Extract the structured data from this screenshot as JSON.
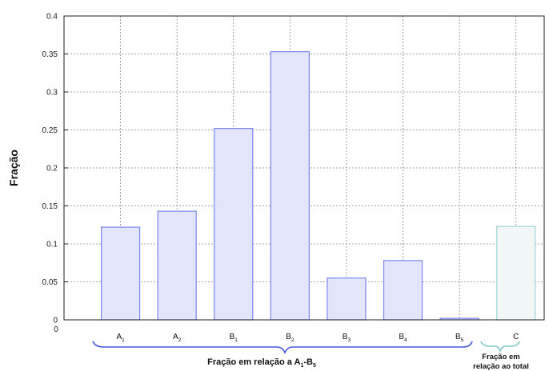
{
  "chart_data": {
    "type": "bar",
    "ylabel": "Fração",
    "ylim": [
      0,
      0.4
    ],
    "yticks": [
      "0",
      "0.05",
      "0.1",
      "0.15",
      "0.2",
      "0.25",
      "0.3",
      "0.35",
      "0.4"
    ],
    "x_origin_label": "0",
    "grid": true,
    "categories": [
      {
        "base": "A",
        "sub": "1"
      },
      {
        "base": "A",
        "sub": "2"
      },
      {
        "base": "B",
        "sub": "1"
      },
      {
        "base": "B",
        "sub": "2"
      },
      {
        "base": "B",
        "sub": "3"
      },
      {
        "base": "B",
        "sub": "4"
      },
      {
        "base": "B",
        "sub": "5"
      },
      {
        "base": "C",
        "sub": ""
      }
    ],
    "values": [
      0.122,
      0.143,
      0.252,
      0.353,
      0.055,
      0.078,
      0.002,
      0.123
    ],
    "colors": [
      "#7b86ee",
      "#7b86ee",
      "#7b86ee",
      "#7b86ee",
      "#7b86ee",
      "#7b86ee",
      "#7b86ee",
      "#9fd4d4"
    ],
    "fills": [
      "#e3e6fb",
      "#e3e6fb",
      "#e3e6fb",
      "#e3e6fb",
      "#e3e6fb",
      "#e3e6fb",
      "#e3e6fb",
      "#f1f7f7"
    ],
    "groups": [
      {
        "text_pre": "Fração em relação a A",
        "sub1": "1",
        "text_mid": "-B",
        "sub2": "5",
        "color": "#4a57e0"
      },
      {
        "line1": "Fração em",
        "line2": "relação ao total",
        "color": "#86cccc"
      }
    ]
  }
}
